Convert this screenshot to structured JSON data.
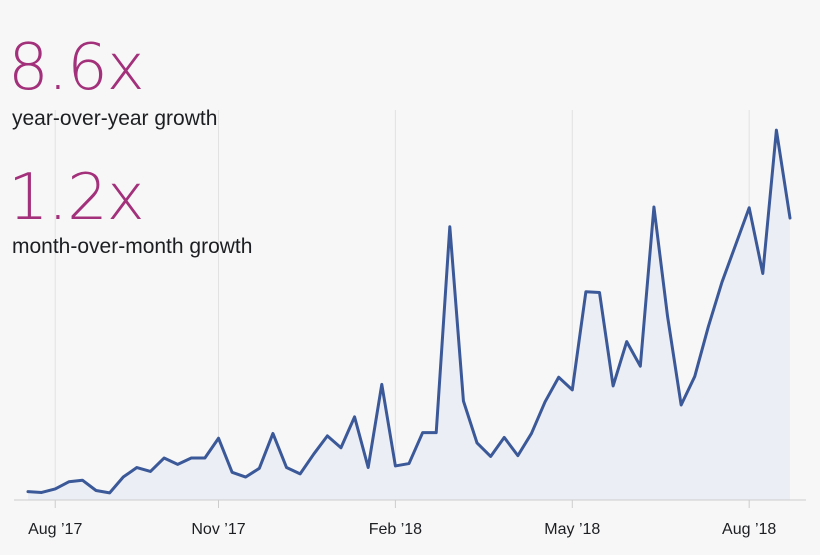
{
  "colors": {
    "background": "#f7f7f7",
    "accent": "#a3307a",
    "line": "#3b5998",
    "area": "#eceef5",
    "gridline": "#e2e2e2",
    "axis": "#cccccc",
    "text": "#1c1e21"
  },
  "stats": [
    {
      "value": "8.6x",
      "label": "year-over-year growth"
    },
    {
      "value": "1.2x",
      "label": "month-over-month growth"
    }
  ],
  "chart_data": {
    "type": "area",
    "title": "",
    "xlabel": "",
    "ylabel": "",
    "grid": "vertical lines at labeled ticks",
    "legend": "none",
    "y_axis_labels": "none",
    "x_ticks": [
      {
        "label": "Aug ’17",
        "index": 2
      },
      {
        "label": "Nov ’17",
        "index": 14
      },
      {
        "label": "Feb ’18",
        "index": 27
      },
      {
        "label": "May ’18",
        "index": 40
      },
      {
        "label": "Aug ’18",
        "index": 53
      }
    ],
    "series": [
      {
        "values": [
          2.1,
          1.9,
          2.8,
          4.6,
          5.0,
          2.4,
          1.8,
          5.8,
          8.2,
          7.2,
          10.6,
          9.0,
          10.6,
          10.6,
          15.6,
          7.0,
          5.8,
          8.0,
          16.8,
          8.2,
          6.6,
          11.6,
          16.2,
          13.2,
          21.0,
          8.2,
          29.2,
          8.6,
          9.2,
          17.0,
          17.0,
          69.0,
          25.0,
          14.4,
          11.0,
          15.8,
          11.2,
          16.8,
          24.8,
          31.0,
          27.8,
          52.6,
          52.4,
          28.8,
          40.0,
          33.8,
          74.0,
          46.4,
          24.0,
          31.2,
          43.8,
          55.0,
          64.4,
          73.8,
          57.2,
          93.4,
          71.2
        ]
      }
    ]
  }
}
